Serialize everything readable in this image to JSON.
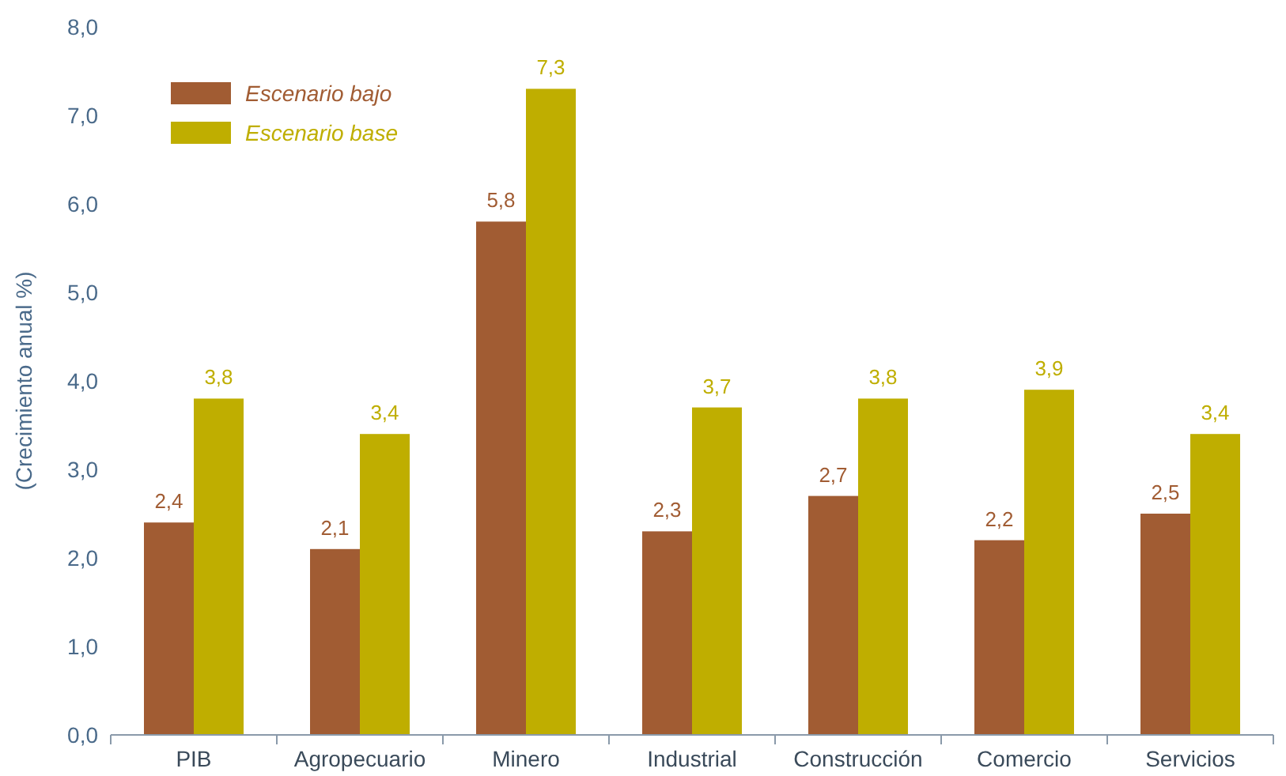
{
  "chart_data": {
    "type": "bar",
    "ylabel": "(Crecimiento anual %)",
    "categories": [
      "PIB",
      "Agropecuario",
      "Minero",
      "Industrial",
      "Construcción",
      "Comercio",
      "Servicios"
    ],
    "series": [
      {
        "name": "Escenario bajo",
        "color": "#a15c33",
        "values": [
          2.4,
          2.1,
          5.8,
          2.3,
          2.7,
          2.2,
          2.5
        ],
        "value_labels": [
          "2,4",
          "2,1",
          "5,8",
          "2,3",
          "2,7",
          "2,2",
          "2,5"
        ]
      },
      {
        "name": "Escenario base",
        "color": "#bfae00",
        "values": [
          3.8,
          3.4,
          7.3,
          3.7,
          3.8,
          3.9,
          3.4
        ],
        "value_labels": [
          "3,8",
          "3,4",
          "7,3",
          "3,7",
          "3,8",
          "3,9",
          "3,4"
        ]
      }
    ],
    "ylim": [
      0,
      8
    ],
    "yticks": [
      {
        "value": 0,
        "label": "0,0"
      },
      {
        "value": 1,
        "label": "1,0"
      },
      {
        "value": 2,
        "label": "2,0"
      },
      {
        "value": 3,
        "label": "3,0"
      },
      {
        "value": 4,
        "label": "4,0"
      },
      {
        "value": 5,
        "label": "5,0"
      },
      {
        "value": 6,
        "label": "6,0"
      },
      {
        "value": 7,
        "label": "7,0"
      },
      {
        "value": 8,
        "label": "8,0"
      }
    ],
    "grid": false,
    "legend": "top left"
  }
}
